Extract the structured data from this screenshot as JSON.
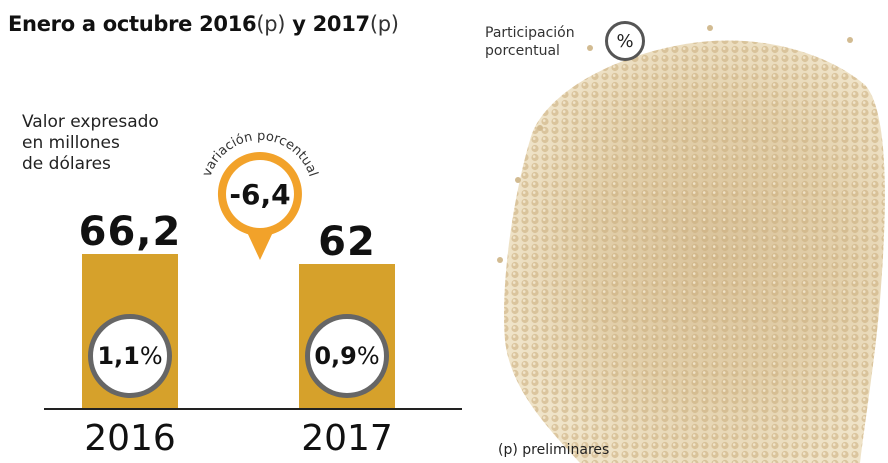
{
  "header": {
    "title_main": "Enero a octubre 2016",
    "title_p1": "(p)",
    "title_mid": " y 2017",
    "title_p2": "(p)"
  },
  "unit_label": [
    "Valor expresado",
    "en millones",
    "de dólares"
  ],
  "legend": {
    "label_line1": "Participación",
    "label_line2": "porcentual",
    "symbol": "%"
  },
  "variation": {
    "label": "variación porcentual",
    "value": "-6,4"
  },
  "note": "(p) preliminares",
  "colors": {
    "bar": "#d6a12b",
    "badge": "#f2a22a",
    "circle_border": "#666666"
  },
  "chart_data": {
    "type": "bar",
    "categories": [
      "2016",
      "2017"
    ],
    "values": [
      66.2,
      62
    ],
    "value_labels": [
      "66,2",
      "62"
    ],
    "share_labels": [
      "1,1",
      "0,9"
    ],
    "share_unit": "%",
    "title": "Enero a octubre 2016(p) y 2017(p)",
    "ylabel": "Valor expresado en millones de dólares",
    "grid": false
  }
}
